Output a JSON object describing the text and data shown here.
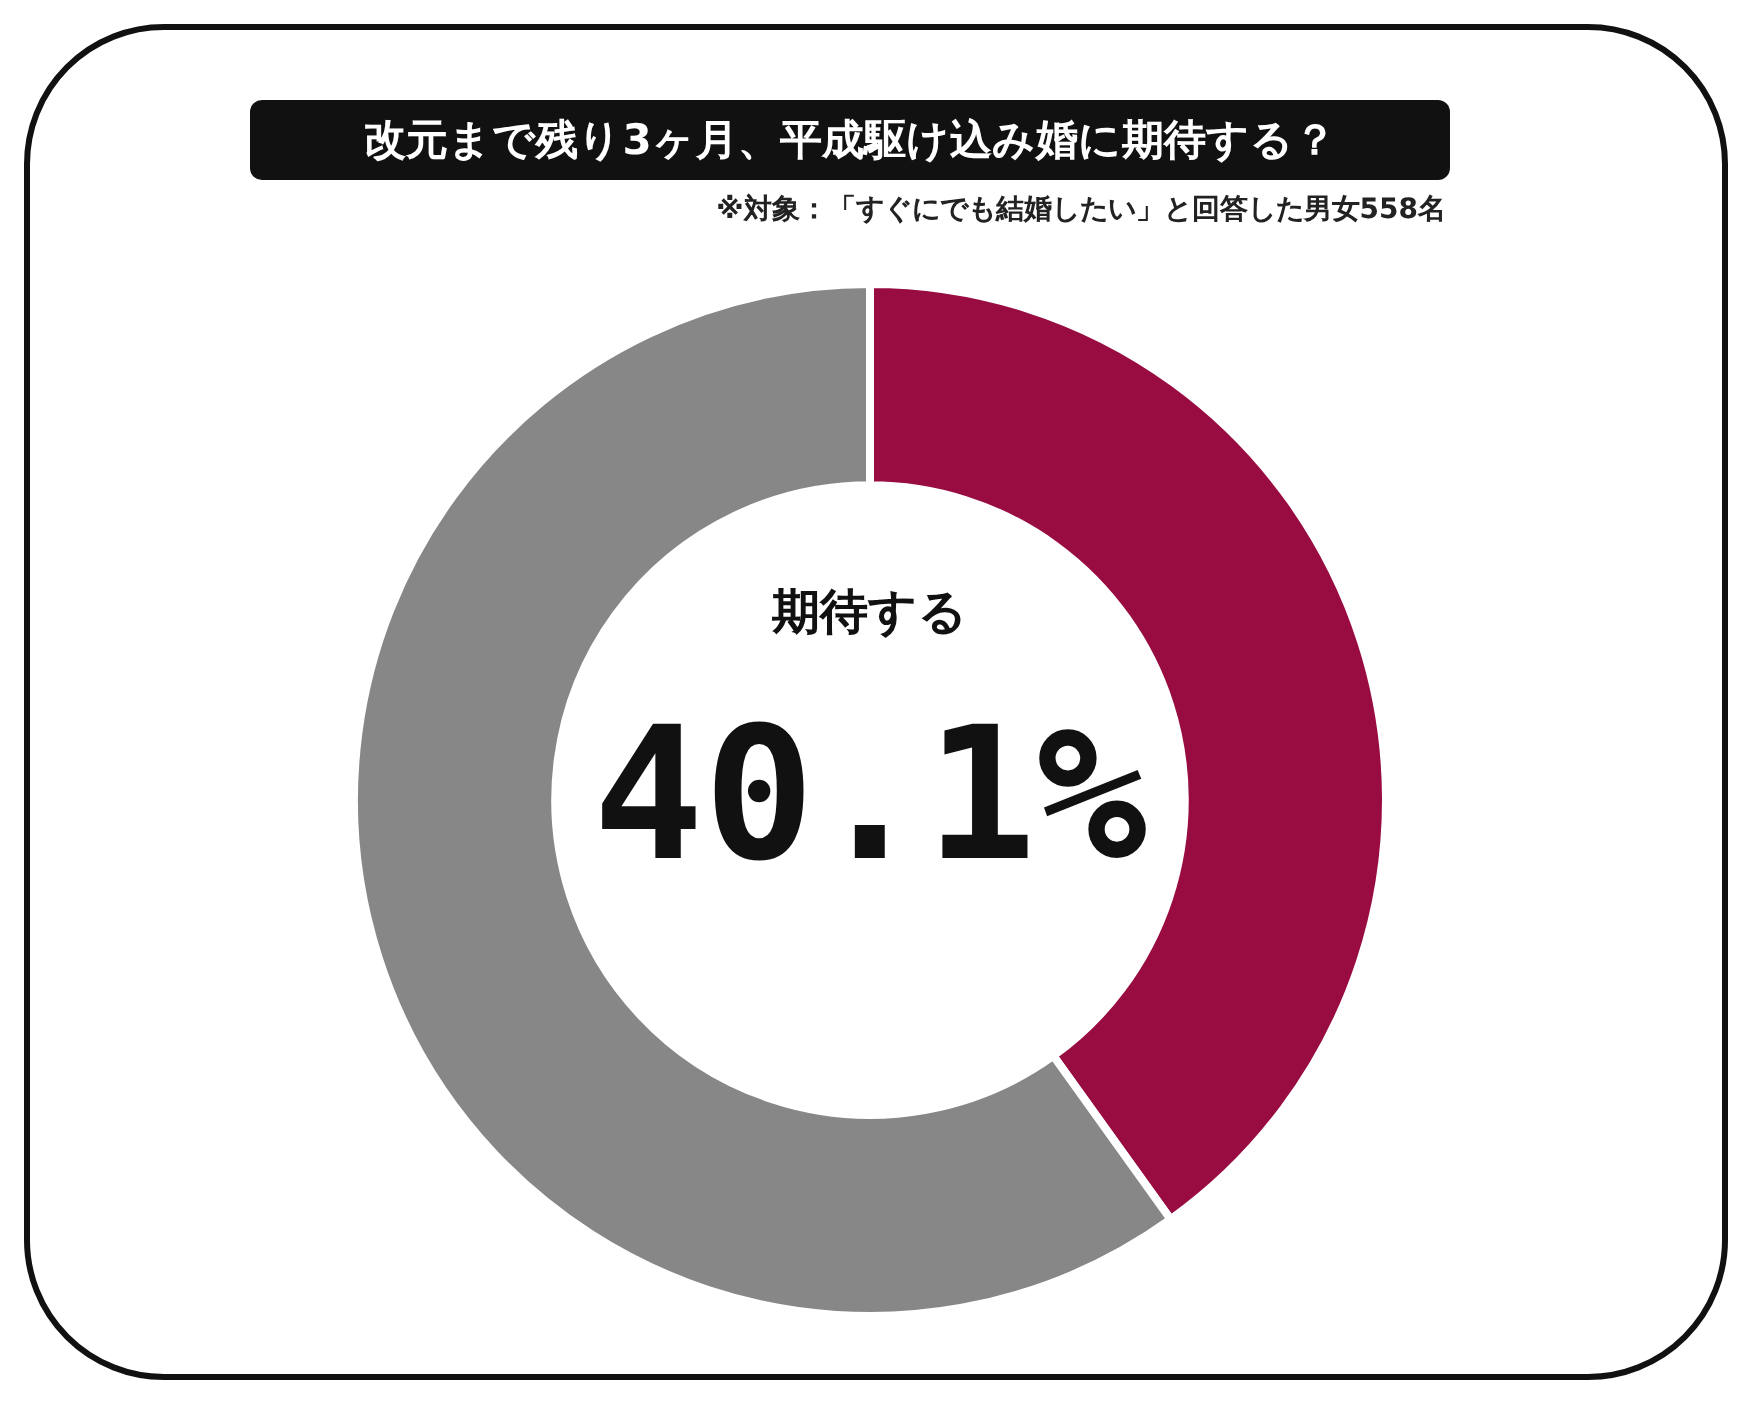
{
  "chart_data": {
    "type": "donut",
    "title": "改元まで残り3ヶ月、平成駆け込み婚に期待する？",
    "subtitle": "※対象：「すぐにでも結婚したい」と回答した男女558名",
    "categories": [
      "期待する",
      null
    ],
    "values": [
      40.1,
      59.9
    ],
    "colors": [
      "#990c42",
      "#878787"
    ],
    "value_labels": [
      "40.1%",
      null
    ],
    "legend": false
  }
}
